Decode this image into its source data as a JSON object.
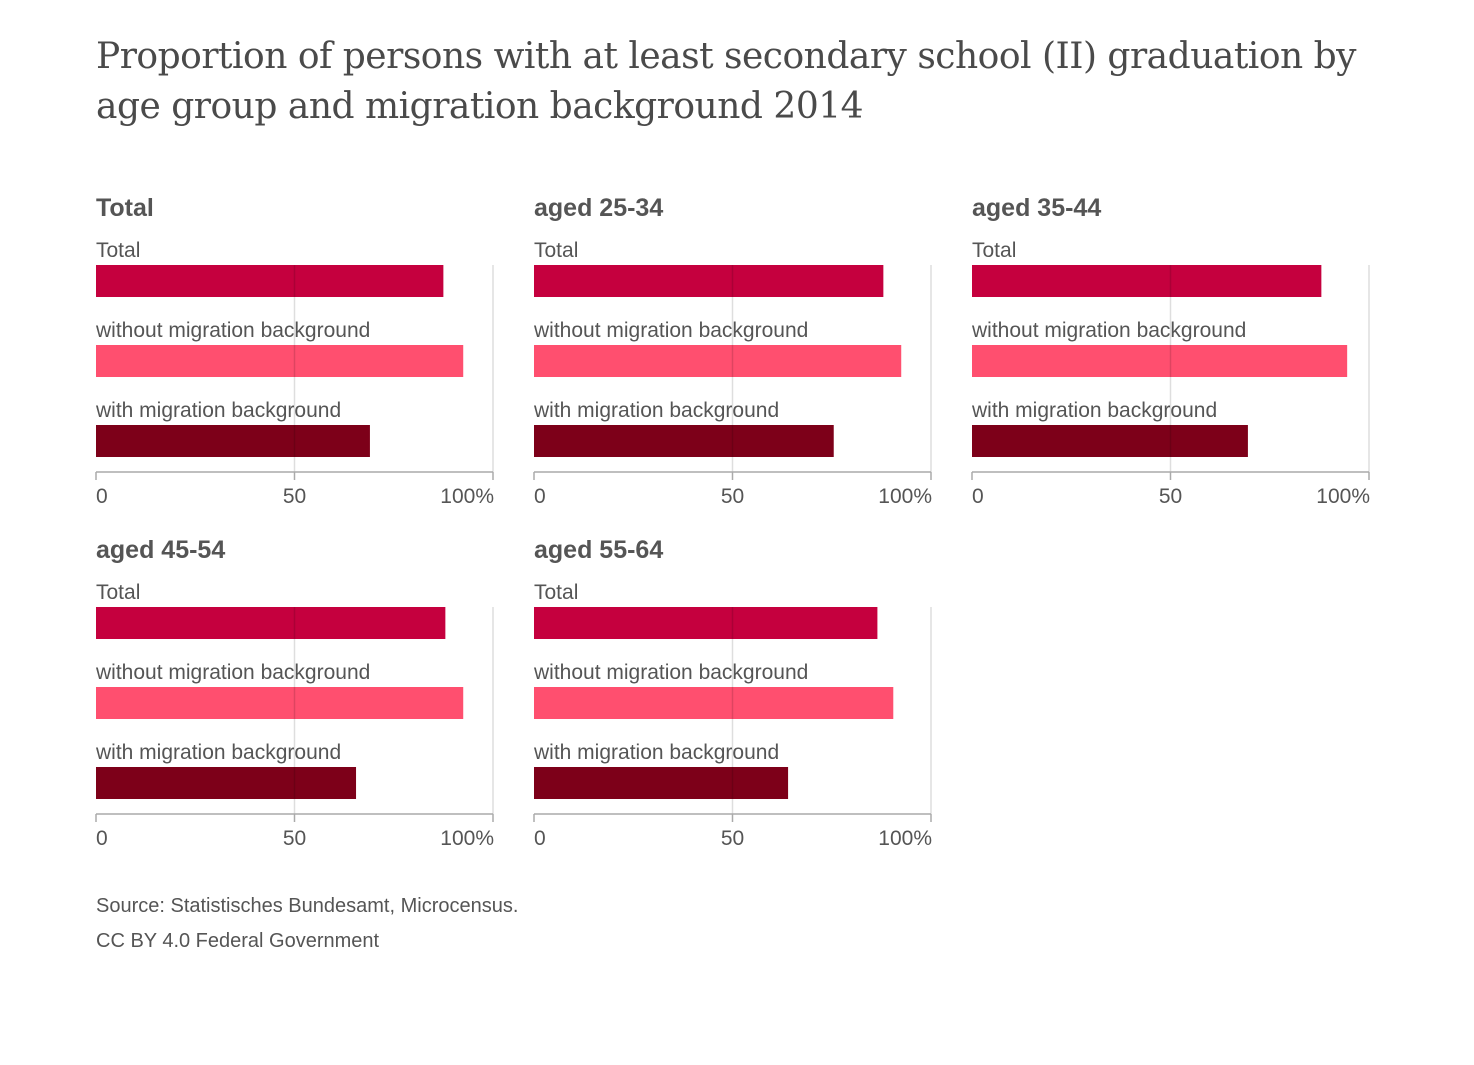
{
  "title": "Proportion of persons with at least secondary school (II) graduation by age group and migration background 2014",
  "source": "Source: Statistisches Bundesamt, Microcensus.",
  "license": "CC BY 4.0 Federal Government",
  "colors": {
    "total": "#c5003e",
    "without": "#ff4f6f",
    "with": "#7d0019",
    "grid": "#dddddd",
    "axis": "#aaaaaa",
    "text": "#555555"
  },
  "chart_data": [
    {
      "type": "bar",
      "orientation": "horizontal",
      "title": "Total",
      "categories": [
        "Total",
        "without migration background",
        "with migration background"
      ],
      "values": [
        87.5,
        92.5,
        69
      ],
      "xlim": [
        0,
        100
      ],
      "xticks": [
        "0",
        "50",
        "100%"
      ]
    },
    {
      "type": "bar",
      "orientation": "horizontal",
      "title": "aged 25-34",
      "categories": [
        "Total",
        "without migration background",
        "with migration background"
      ],
      "values": [
        88,
        92.5,
        75.5
      ],
      "xlim": [
        0,
        100
      ],
      "xticks": [
        "0",
        "50",
        "100%"
      ]
    },
    {
      "type": "bar",
      "orientation": "horizontal",
      "title": "aged 35-44",
      "categories": [
        "Total",
        "without migration background",
        "with migration background"
      ],
      "values": [
        88,
        94.5,
        69.5
      ],
      "xlim": [
        0,
        100
      ],
      "xticks": [
        "0",
        "50",
        "100%"
      ]
    },
    {
      "type": "bar",
      "orientation": "horizontal",
      "title": "aged 45-54",
      "categories": [
        "Total",
        "without migration background",
        "with migration background"
      ],
      "values": [
        88,
        92.5,
        65.5
      ],
      "xlim": [
        0,
        100
      ],
      "xticks": [
        "0",
        "50",
        "100%"
      ]
    },
    {
      "type": "bar",
      "orientation": "horizontal",
      "title": "aged 55-64",
      "categories": [
        "Total",
        "without migration background",
        "with migration background"
      ],
      "values": [
        86.5,
        90.5,
        64
      ],
      "xlim": [
        0,
        100
      ],
      "xticks": [
        "0",
        "50",
        "100%"
      ]
    }
  ]
}
